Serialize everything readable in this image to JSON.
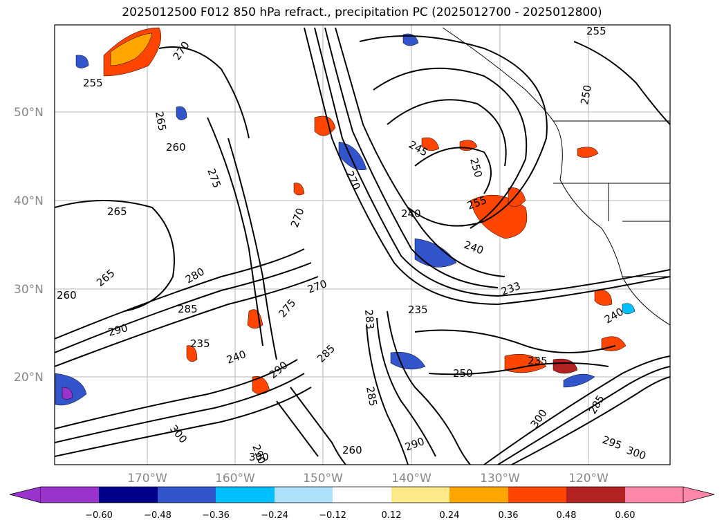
{
  "title": "2025012500 F012 850 hPa refract., precipitation PC (2025012700 - 2025012800)",
  "map": {
    "lat_ticks": [
      "50°N",
      "40°N",
      "30°N",
      "20°N"
    ],
    "lon_ticks": [
      "170°W",
      "160°W",
      "150°W",
      "140°W",
      "130°W",
      "120°W"
    ],
    "contour_labels": [
      "270",
      "255",
      "265",
      "260",
      "275",
      "265",
      "270",
      "265",
      "280",
      "285",
      "290",
      "260",
      "300",
      "235",
      "240",
      "290",
      "285",
      "250",
      "270",
      "275",
      "240",
      "245",
      "250",
      "255",
      "240",
      "235",
      "233",
      "250",
      "235",
      "240",
      "285",
      "300",
      "285",
      "255",
      "300",
      "283",
      "295",
      "290",
      "260",
      "270",
      "290",
      "300"
    ],
    "colors": {
      "contour": "#000000",
      "coast": "#000000",
      "grid": "#888888"
    }
  },
  "colorbar": {
    "labels": [
      "−0.60",
      "−0.48",
      "−0.36",
      "−0.24",
      "−0.12",
      "0.12",
      "0.24",
      "0.36",
      "0.48",
      "0.60"
    ],
    "colors": [
      "#9933cc",
      "#00008b",
      "#3355cc",
      "#00bfff",
      "#aee2fa",
      "#ffffff",
      "#ffea8a",
      "#ffa500",
      "#ff4500",
      "#b22222",
      "#ff88aa"
    ]
  }
}
